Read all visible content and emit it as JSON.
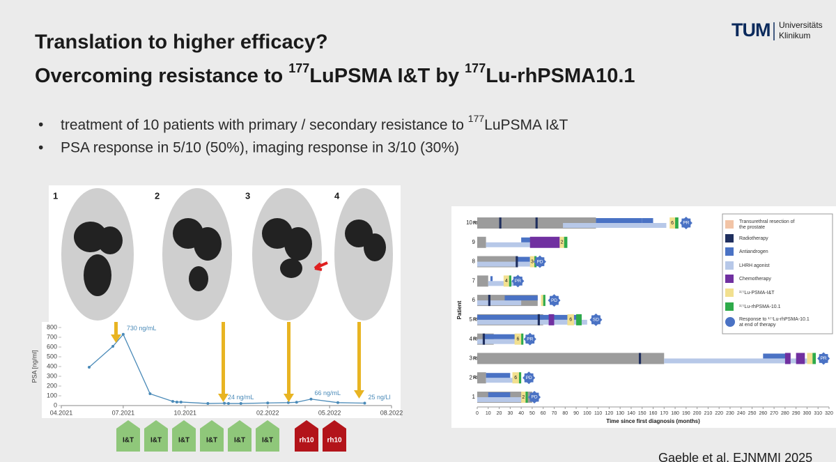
{
  "header": {
    "line1": "Translation to higher efficacy?",
    "line2": [
      "Overcoming resistance to ",
      "177",
      "LuPSMA I&T by ",
      "177",
      "Lu-rhPSMA10.1"
    ]
  },
  "logo": {
    "mark": "TUM",
    "line1": "Universitäts",
    "line2": "Klinikum"
  },
  "bullets": [
    [
      "treatment of 10 patients with primary / secondary resistance to ",
      "177",
      "LuPSMA I&T"
    ],
    [
      "PSA response in 5/10 (50%), imaging response in 3/10 (30%)"
    ]
  ],
  "pet_panels": [
    "1",
    "2",
    "3",
    "4"
  ],
  "treatments": [
    {
      "label": "I&T",
      "color": "#8fc77a"
    },
    {
      "label": "I&T",
      "color": "#8fc77a"
    },
    {
      "label": "I&T",
      "color": "#8fc77a"
    },
    {
      "label": "I&T",
      "color": "#8fc77a"
    },
    {
      "label": "I&T",
      "color": "#8fc77a"
    },
    {
      "label": "I&T",
      "color": "#8fc77a"
    },
    {
      "label": "rh10",
      "color": "#b3141a"
    },
    {
      "label": "rh10",
      "color": "#b3141a"
    }
  ],
  "citation": "Gaeble et al. EJNMMI 2025",
  "chart_data": [
    {
      "type": "line",
      "y_label": "PSA [ng/ml]",
      "color": "#4a8ab8",
      "x": [
        1.35,
        2.5,
        3.0,
        4.3,
        5.4,
        5.6,
        5.8,
        7.1,
        7.9,
        8.1,
        8.7,
        10.0,
        11.0,
        11.4,
        12.1,
        13.4,
        14.7
      ],
      "values": [
        393,
        607,
        730,
        121,
        43,
        36,
        36,
        21,
        24,
        21,
        21,
        27,
        30,
        34,
        66,
        30,
        25
      ],
      "value_labels": [
        null,
        null,
        "730 ng/mL",
        null,
        null,
        null,
        null,
        null,
        "24 ng/mL",
        null,
        null,
        null,
        null,
        null,
        "66 ng/mL",
        null,
        "25 ng/Ll"
      ],
      "xlim": [
        0,
        16
      ],
      "ylim": [
        0,
        800
      ],
      "xticks": [
        {
          "value": 0,
          "label": "04.2021"
        },
        {
          "value": 3,
          "label": "07.2021"
        },
        {
          "value": 6,
          "label": "10.2021"
        },
        {
          "value": 10,
          "label": "02.2022"
        },
        {
          "value": 13,
          "label": "05.2022"
        },
        {
          "value": 16,
          "label": "08.2022"
        }
      ],
      "yticks": [
        0,
        100,
        200,
        300,
        400,
        500,
        600,
        700,
        800
      ],
      "grid": false
    },
    {
      "type": "swimmer",
      "x_label": "Time since first diagnosis (months)",
      "y_label": "Patient",
      "xlim": [
        0,
        320
      ],
      "xticks": [
        0,
        10,
        20,
        30,
        40,
        50,
        60,
        70,
        80,
        90,
        100,
        110,
        120,
        130,
        140,
        150,
        160,
        170,
        180,
        190,
        200,
        210,
        220,
        230,
        240,
        250,
        260,
        270,
        280,
        290,
        300,
        310,
        320
      ],
      "observation_color": "#9c9c9c",
      "response_color": "#4a72c4",
      "legend": [
        {
          "name": [
            "Transurethral resection of",
            "the prostate"
          ],
          "color": "#f2c4a6"
        },
        {
          "name": [
            "Radiotherapy"
          ],
          "color": "#1f2f5e"
        },
        {
          "name": [
            "Antiandrogen"
          ],
          "color": "#4a72c4"
        },
        {
          "name": [
            "LHRH agonist"
          ],
          "color": "#b7c8e8"
        },
        {
          "name": [
            "Chemotherapy"
          ],
          "color": "#7030a0"
        },
        {
          "name": [
            "¹⁷⁷Lu-PSMA-I&T"
          ],
          "color": "#f2e08f"
        },
        {
          "name": [
            "¹⁷⁷Lu-rhPSMA-10.1"
          ],
          "color": "#2eaa4a"
        },
        {
          "name": [
            "Response to ¹⁷⁷Lu-rhPSMA-10.1",
            "at end of therapy"
          ],
          "color": "#4a72c4"
        }
      ],
      "patients": [
        {
          "label": "1",
          "observation": [
            0,
            50
          ],
          "segments": [
            {
              "item": 3,
              "start": 0,
              "end": 40
            },
            {
              "item": 2,
              "start": 10,
              "end": 30
            },
            {
              "item": 5,
              "start": 40,
              "end": 44,
              "label": "2"
            },
            {
              "item": 6,
              "start": 44,
              "end": 46
            }
          ],
          "response": "PD",
          "response_at": 52
        },
        {
          "label": "2",
          "prefix": "RP",
          "observation": [
            0,
            8
          ],
          "segments": [
            {
              "item": 3,
              "start": 8,
              "end": 40
            },
            {
              "item": 2,
              "start": 8,
              "end": 30
            },
            {
              "item": 5,
              "start": 32,
              "end": 38,
              "label": "6"
            },
            {
              "item": 6,
              "start": 38,
              "end": 40
            }
          ],
          "response": "PD",
          "response_at": 47
        },
        {
          "label": "3",
          "prefix": "RP",
          "observation": [
            0,
            170
          ],
          "segments": [
            {
              "item": 1,
              "start": 147,
              "end": 149
            },
            {
              "item": 3,
              "start": 170,
              "end": 300
            },
            {
              "item": 2,
              "start": 260,
              "end": 285
            },
            {
              "item": 4,
              "start": 280,
              "end": 285
            },
            {
              "item": 4,
              "start": 290,
              "end": 298
            },
            {
              "item": 5,
              "start": 300,
              "end": 305
            },
            {
              "item": 6,
              "start": 305,
              "end": 308
            }
          ],
          "response": "PR",
          "response_at": 315
        },
        {
          "label": "4",
          "prefix": "RP",
          "observation": [
            0,
            15
          ],
          "segments": [
            {
              "item": 3,
              "start": 0,
              "end": 38
            },
            {
              "item": 2,
              "start": 5,
              "end": 35
            },
            {
              "item": 1,
              "start": 5,
              "end": 7
            },
            {
              "item": 5,
              "start": 34,
              "end": 40,
              "label": "6"
            },
            {
              "item": 6,
              "start": 40,
              "end": 42
            }
          ],
          "response": "PR",
          "response_at": 48
        },
        {
          "label": "5",
          "prefix": "RP",
          "observation": [
            0,
            60
          ],
          "segments": [
            {
              "item": 3,
              "start": 0,
              "end": 100
            },
            {
              "item": 2,
              "start": 0,
              "end": 95
            },
            {
              "item": 1,
              "start": 55,
              "end": 57
            },
            {
              "item": 4,
              "start": 65,
              "end": 70
            },
            {
              "item": 5,
              "start": 82,
              "end": 88,
              "label": "6"
            },
            {
              "item": 6,
              "start": 90,
              "end": 95
            }
          ],
          "response": "SD",
          "response_at": 108
        },
        {
          "label": "6",
          "observation": [
            0,
            55
          ],
          "segments": [
            {
              "item": 3,
              "start": 0,
              "end": 40
            },
            {
              "item": 2,
              "start": 25,
              "end": 55
            },
            {
              "item": 1,
              "start": 10,
              "end": 12
            },
            {
              "item": 5,
              "start": 58,
              "end": 60
            },
            {
              "item": 6,
              "start": 60,
              "end": 62
            }
          ],
          "response": "PD",
          "response_at": 70
        },
        {
          "label": "7",
          "observation": [
            0,
            10
          ],
          "segments": [
            {
              "item": 3,
              "start": 10,
              "end": 35
            },
            {
              "item": 2,
              "start": 12,
              "end": 14
            },
            {
              "item": 5,
              "start": 24,
              "end": 29,
              "label": "4"
            },
            {
              "item": 6,
              "start": 29,
              "end": 31
            }
          ],
          "response": "PR",
          "response_at": 37
        },
        {
          "label": "8",
          "observation": [
            0,
            35
          ],
          "segments": [
            {
              "item": 3,
              "start": 0,
              "end": 50
            },
            {
              "item": 2,
              "start": 35,
              "end": 48
            },
            {
              "item": 1,
              "start": 35,
              "end": 37
            },
            {
              "item": 5,
              "start": 48,
              "end": 52,
              "label": "3"
            },
            {
              "item": 6,
              "start": 52,
              "end": 54
            }
          ],
          "response": "PD",
          "response_at": 57
        },
        {
          "label": "9",
          "observation": [
            0,
            8
          ],
          "segments": [
            {
              "item": 3,
              "start": 8,
              "end": 80
            },
            {
              "item": 2,
              "start": 40,
              "end": 60
            },
            {
              "item": 4,
              "start": 48,
              "end": 75
            },
            {
              "item": 5,
              "start": 75,
              "end": 79,
              "label": "2"
            },
            {
              "item": 6,
              "start": 79,
              "end": 82
            }
          ]
        },
        {
          "label": "10",
          "prefix": "RP",
          "observation": [
            0,
            108
          ],
          "segments": [
            {
              "item": 3,
              "start": 78,
              "end": 172
            },
            {
              "item": 2,
              "start": 108,
              "end": 150
            },
            {
              "item": 2,
              "start": 150,
              "end": 160
            },
            {
              "item": 1,
              "start": 20,
              "end": 22
            },
            {
              "item": 1,
              "start": 53,
              "end": 55
            },
            {
              "item": 5,
              "start": 175,
              "end": 180,
              "label": "6"
            },
            {
              "item": 6,
              "start": 180,
              "end": 183
            }
          ],
          "response": "PR",
          "response_at": 190
        }
      ]
    }
  ]
}
